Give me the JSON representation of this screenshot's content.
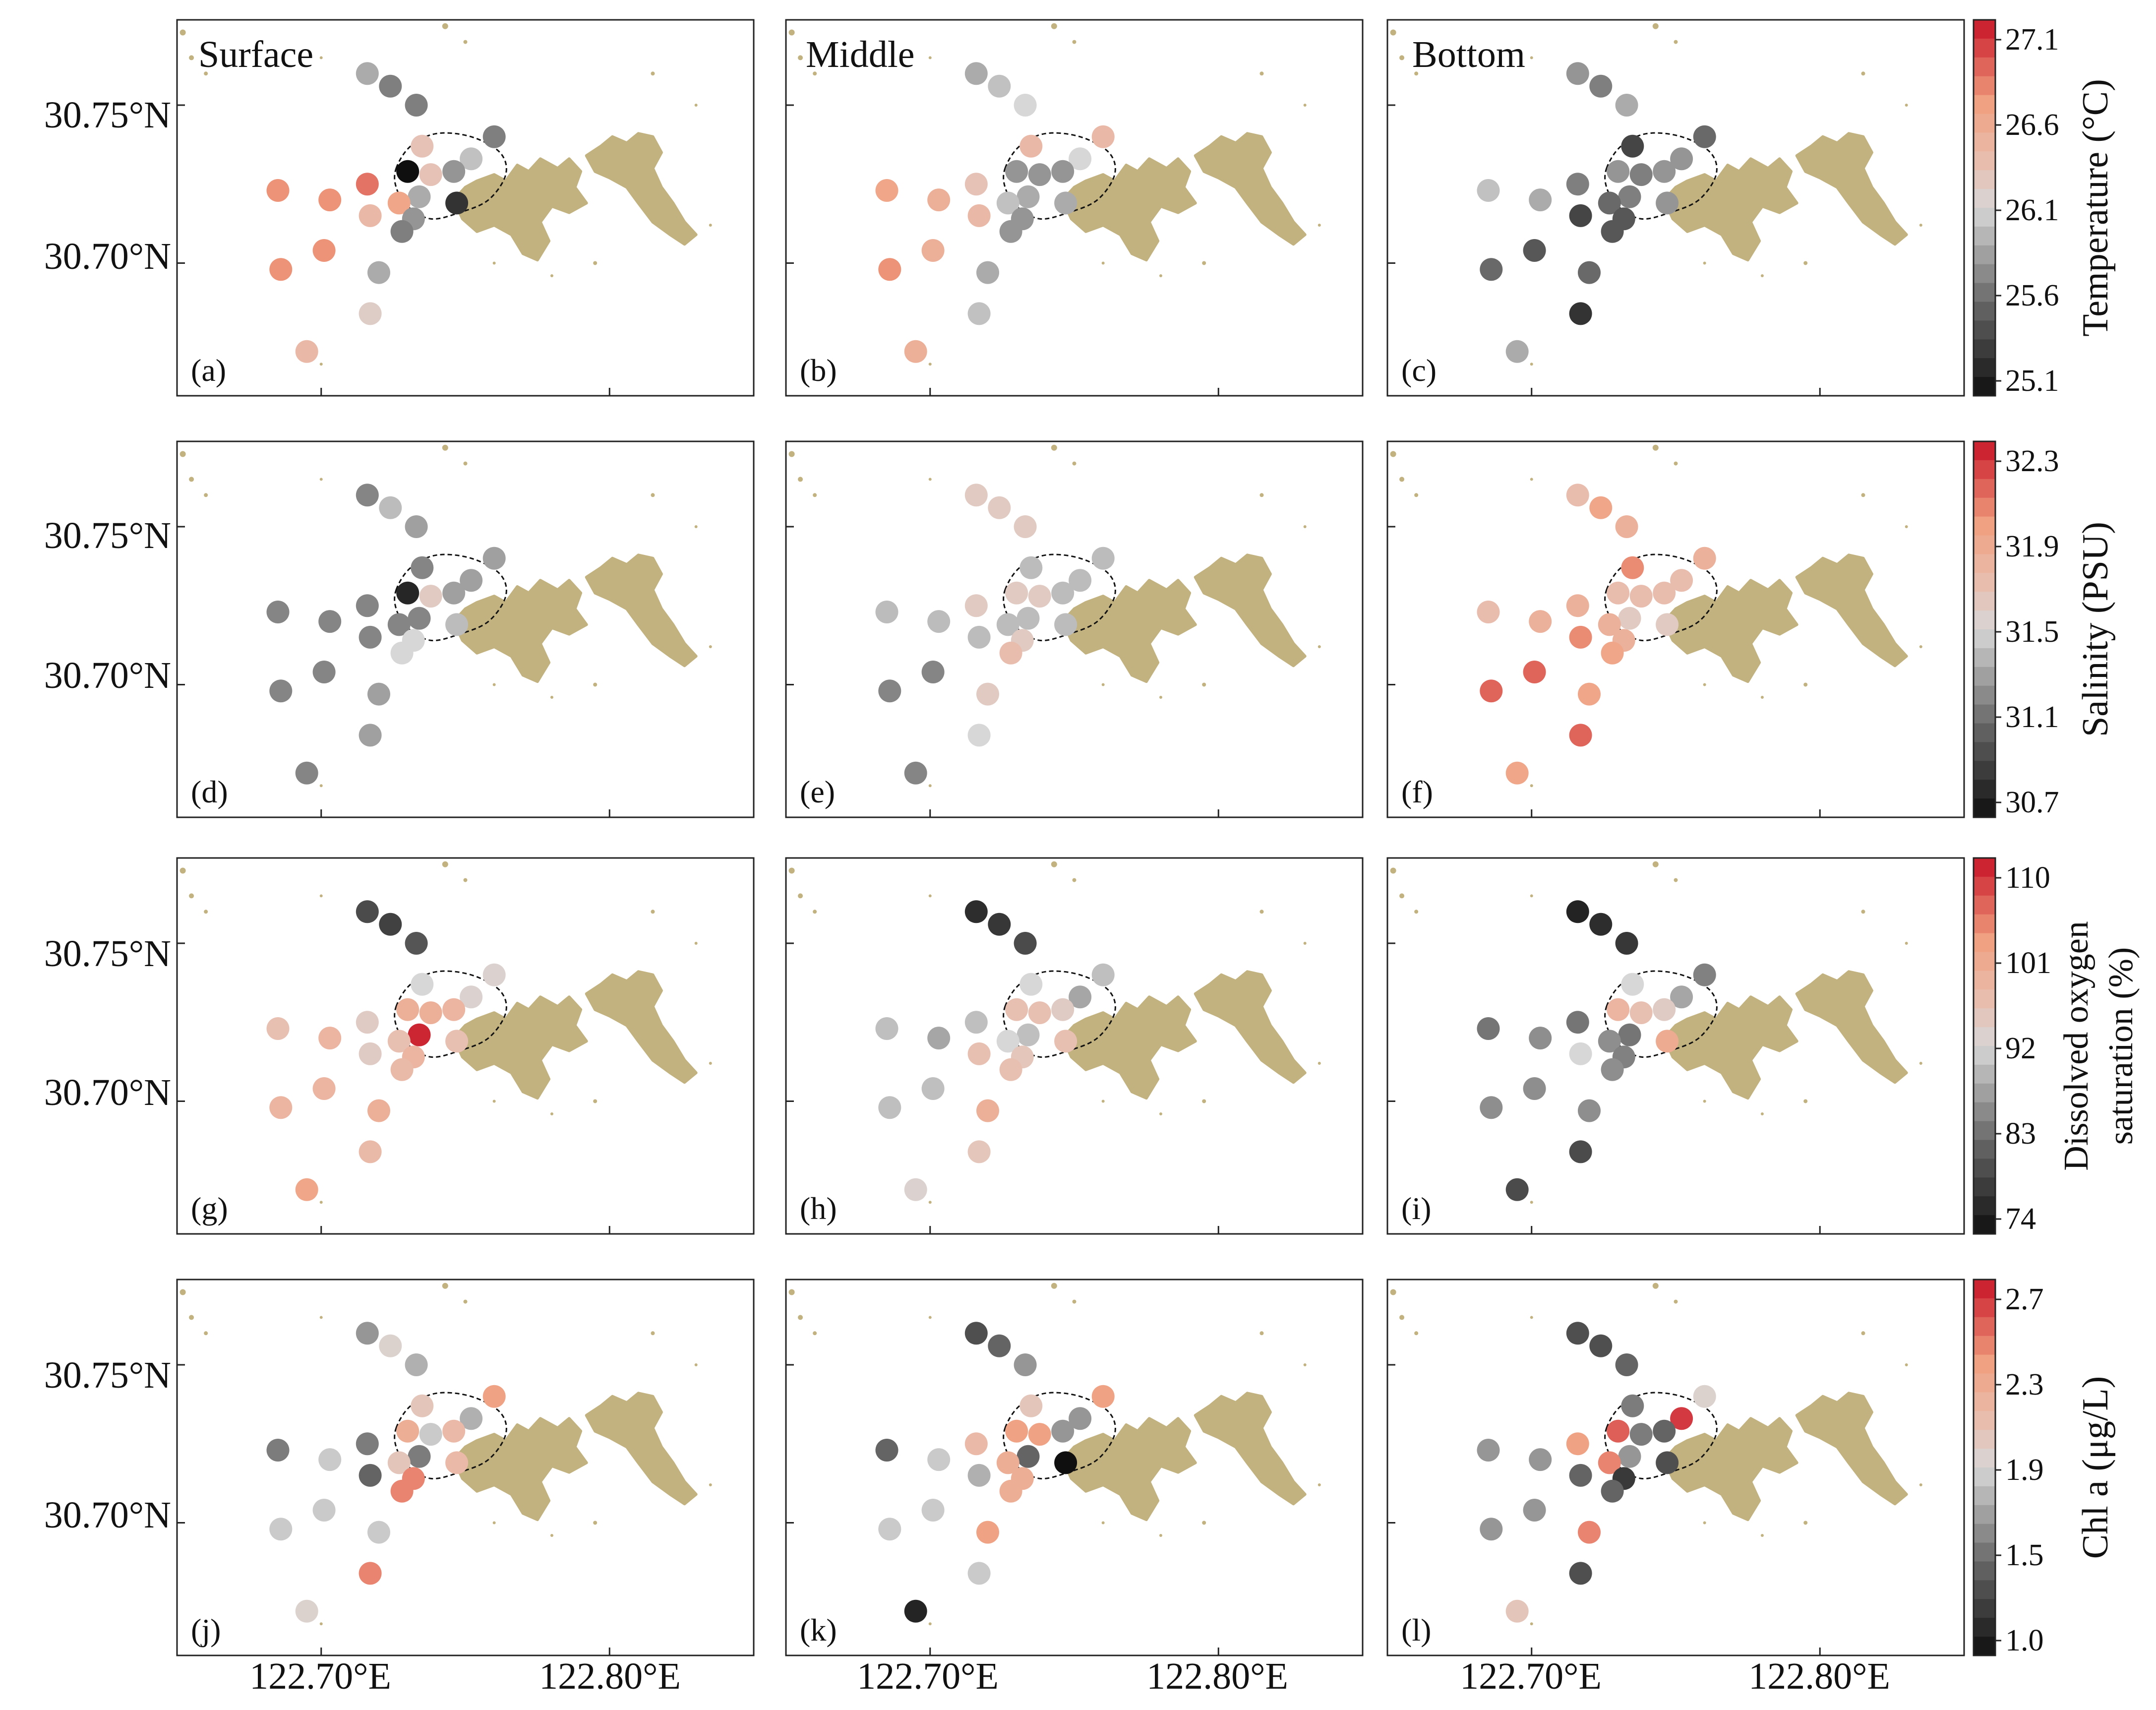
{
  "columns": [
    "Surface",
    "Middle",
    "Bottom"
  ],
  "panel_letters": [
    "(a)",
    "(b)",
    "(c)",
    "(d)",
    "(e)",
    "(f)",
    "(g)",
    "(h)",
    "(i)",
    "(j)",
    "(k)",
    "(l)"
  ],
  "x_ticks": [
    "122.70°E",
    "122.80°E"
  ],
  "y_ticks": [
    "30.75°N",
    "30.70°N"
  ],
  "map": {
    "lon_range": [
      122.65,
      122.85
    ],
    "lat_range": [
      30.658,
      30.777
    ],
    "land_color": "#C2B27F",
    "station_radius_note": "uniform circles"
  },
  "stations": [
    {
      "id": "S1",
      "lon": 122.716,
      "lat": 30.76
    },
    {
      "id": "S2",
      "lon": 122.724,
      "lat": 30.756
    },
    {
      "id": "S3",
      "lon": 122.733,
      "lat": 30.75
    },
    {
      "id": "S4",
      "lon": 122.735,
      "lat": 30.737
    },
    {
      "id": "S5",
      "lon": 122.752,
      "lat": 30.733
    },
    {
      "id": "S6",
      "lon": 122.76,
      "lat": 30.74
    },
    {
      "id": "S7",
      "lon": 122.73,
      "lat": 30.729
    },
    {
      "id": "S8",
      "lon": 122.738,
      "lat": 30.728
    },
    {
      "id": "S9",
      "lon": 122.746,
      "lat": 30.729
    },
    {
      "id": "S10",
      "lon": 122.734,
      "lat": 30.721
    },
    {
      "id": "S11",
      "lon": 122.747,
      "lat": 30.719
    },
    {
      "id": "S12",
      "lon": 122.727,
      "lat": 30.719
    },
    {
      "id": "S13",
      "lon": 122.732,
      "lat": 30.714
    },
    {
      "id": "S14",
      "lon": 122.728,
      "lat": 30.71
    },
    {
      "id": "S15",
      "lon": 122.716,
      "lat": 30.725
    },
    {
      "id": "S16",
      "lon": 122.717,
      "lat": 30.715
    },
    {
      "id": "S17",
      "lon": 122.72,
      "lat": 30.697
    },
    {
      "id": "S18",
      "lon": 122.717,
      "lat": 30.684
    },
    {
      "id": "S19",
      "lon": 122.685,
      "lat": 30.723
    },
    {
      "id": "S20",
      "lon": 122.703,
      "lat": 30.72
    },
    {
      "id": "S21",
      "lon": 122.701,
      "lat": 30.704
    },
    {
      "id": "S22",
      "lon": 122.686,
      "lat": 30.698
    },
    {
      "id": "S23",
      "lon": 122.695,
      "lat": 30.672
    }
  ],
  "chart_data": [
    {
      "type": "scatter",
      "variable": "temperature",
      "colorbar_label": "Temperature (°C)",
      "colorbar_ticks": [
        "27.1",
        "26.6",
        "26.1",
        "25.6",
        "25.1"
      ],
      "range": [
        25.1,
        27.1
      ],
      "layers": {
        "Surface": [
          25.9,
          25.7,
          25.7,
          26.3,
          26.0,
          25.7,
          25.1,
          26.3,
          25.8,
          25.9,
          25.3,
          26.6,
          25.8,
          25.7,
          26.8,
          26.4,
          25.9,
          26.2,
          26.7,
          26.7,
          26.7,
          26.7,
          26.4
        ],
        "Middle": [
          25.9,
          26.0,
          26.1,
          26.4,
          26.1,
          26.4,
          25.8,
          25.8,
          25.8,
          25.9,
          25.9,
          26.0,
          25.8,
          25.8,
          26.3,
          26.4,
          25.9,
          26.0,
          26.6,
          26.5,
          26.5,
          26.7,
          26.5
        ],
        "Bottom": [
          25.8,
          25.7,
          25.9,
          25.4,
          25.8,
          25.6,
          25.8,
          25.7,
          25.8,
          25.7,
          25.8,
          25.6,
          25.5,
          25.5,
          25.7,
          25.4,
          25.6,
          25.3,
          26.0,
          25.9,
          25.5,
          25.6,
          25.9
        ]
      }
    },
    {
      "type": "scatter",
      "variable": "salinity",
      "colorbar_label": "Salinity (PSU)",
      "colorbar_ticks": [
        "32.3",
        "31.9",
        "31.5",
        "31.1",
        "30.7"
      ],
      "range": [
        30.7,
        32.3
      ],
      "layers": {
        "Surface": [
          31.2,
          31.4,
          31.3,
          31.2,
          31.3,
          31.3,
          30.8,
          31.6,
          31.3,
          31.2,
          31.4,
          31.2,
          31.5,
          31.5,
          31.2,
          31.2,
          31.3,
          31.3,
          31.2,
          31.2,
          31.2,
          31.2,
          31.2
        ],
        "Middle": [
          31.6,
          31.6,
          31.6,
          31.4,
          31.4,
          31.4,
          31.6,
          31.6,
          31.4,
          31.4,
          31.4,
          31.4,
          31.6,
          31.7,
          31.6,
          31.4,
          31.6,
          31.5,
          31.4,
          31.4,
          31.2,
          31.2,
          31.2
        ],
        "Bottom": [
          31.7,
          31.9,
          31.8,
          32.0,
          31.7,
          31.8,
          31.7,
          31.7,
          31.7,
          31.6,
          31.6,
          31.8,
          31.8,
          31.9,
          31.8,
          32.0,
          31.9,
          32.1,
          31.7,
          31.8,
          32.1,
          32.1,
          31.9
        ]
      }
    },
    {
      "type": "scatter",
      "variable": "dissolved_oxygen_saturation",
      "colorbar_label": "Dissolved oxygen saturation (%)",
      "colorbar_label_lines": [
        "Dissolved oxygen",
        "saturation (%)"
      ],
      "colorbar_ticks": [
        "110",
        "101",
        "92",
        "83",
        "74"
      ],
      "range": [
        74,
        110
      ],
      "layers": {
        "Surface": [
          80,
          79,
          81,
          92,
          93,
          93,
          99,
          99,
          98,
          109,
          96,
          96,
          98,
          97,
          94,
          94,
          99,
          97,
          96,
          98,
          98,
          98,
          101
        ],
        "Middle": [
          77,
          78,
          80,
          92,
          88,
          90,
          96,
          96,
          94,
          90,
          96,
          92,
          95,
          96,
          90,
          96,
          99,
          95,
          90,
          88,
          90,
          90,
          93
        ],
        "Bottom": [
          76,
          77,
          78,
          92,
          88,
          85,
          98,
          96,
          94,
          84,
          100,
          86,
          85,
          86,
          84,
          92,
          86,
          80,
          84,
          86,
          86,
          86,
          80
        ]
      }
    },
    {
      "type": "scatter",
      "variable": "chlorophyll_a",
      "colorbar_label": "Chl a (μg/L)",
      "colorbar_ticks": [
        "2.7",
        "2.3",
        "1.9",
        "1.5",
        "1.0"
      ],
      "range": [
        1.0,
        2.7
      ],
      "layers": {
        "Surface": [
          1.6,
          1.9,
          1.7,
          2.0,
          1.7,
          2.3,
          2.2,
          1.8,
          2.1,
          1.5,
          2.1,
          2.0,
          2.4,
          2.4,
          1.5,
          1.4,
          1.8,
          2.4,
          1.5,
          1.8,
          1.8,
          1.8,
          1.9
        ],
        "Middle": [
          1.3,
          1.4,
          1.6,
          2.0,
          1.6,
          2.3,
          2.3,
          2.3,
          1.6,
          1.4,
          1.0,
          2.2,
          2.2,
          2.2,
          2.1,
          1.7,
          2.3,
          1.8,
          1.4,
          1.8,
          1.8,
          1.8,
          1.1
        ],
        "Bottom": [
          1.3,
          1.3,
          1.4,
          1.5,
          2.6,
          1.9,
          2.5,
          1.5,
          1.4,
          1.6,
          1.3,
          2.4,
          1.2,
          1.4,
          2.3,
          1.4,
          2.4,
          1.3,
          1.6,
          1.6,
          1.6,
          1.6,
          2.0
        ]
      }
    }
  ]
}
